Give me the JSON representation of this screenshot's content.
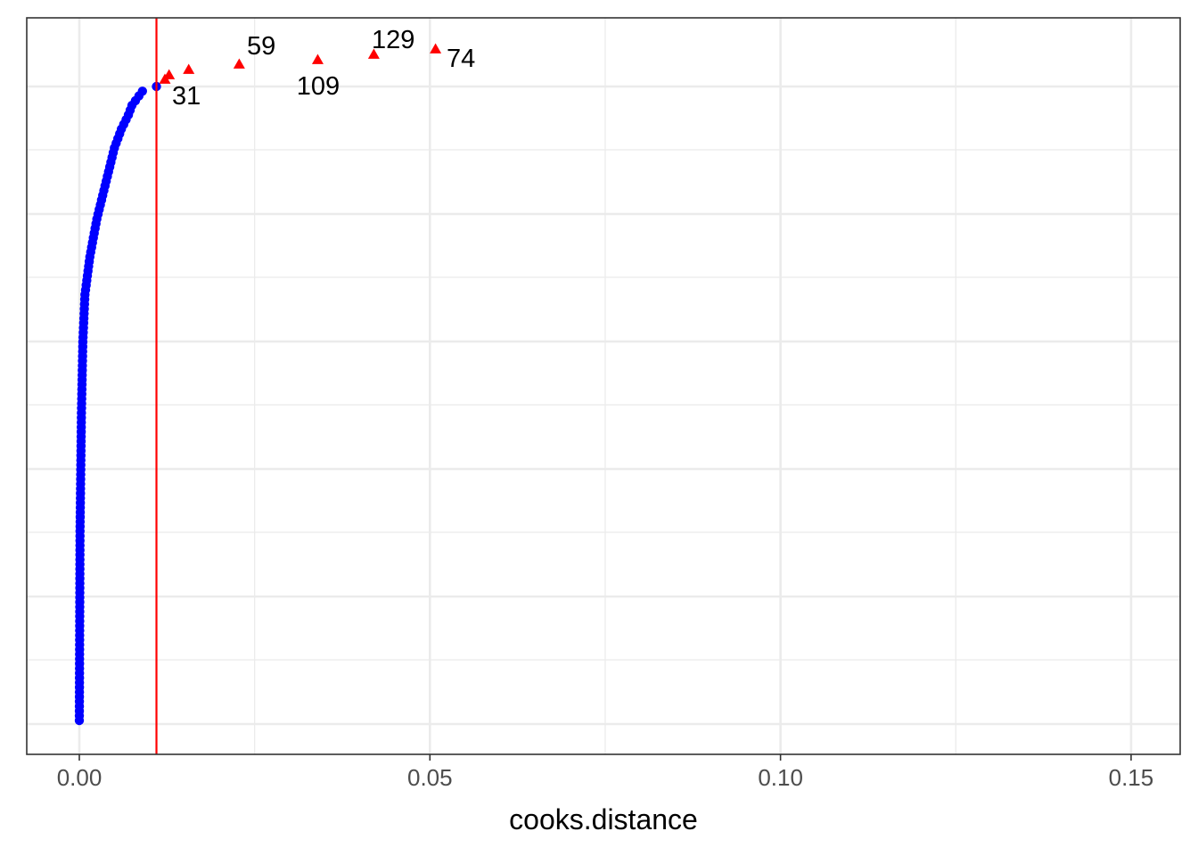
{
  "chart_data": {
    "type": "scatter",
    "xlabel": "cooks.distance",
    "ylabel": "",
    "xlim": [
      -0.0075,
      0.157
    ],
    "ylim": [
      0,
      141
    ],
    "x_ticks": [
      0.0,
      0.05,
      0.1,
      0.15
    ],
    "x_tick_labels": [
      "0.00",
      "0.05",
      "0.10",
      "0.15"
    ],
    "grid": true,
    "colors": {
      "normal_points": "#0000ff",
      "outlier_points": "#ff0000",
      "threshold_line": "#ff0000",
      "grid": "#ebebeb",
      "panel_border": "#333333"
    },
    "threshold": 0.011,
    "normal_anchors": [
      [
        0.0,
        0
      ],
      [
        0.0001,
        40
      ],
      [
        0.0003,
        65
      ],
      [
        0.0005,
        80
      ],
      [
        0.0008,
        90
      ],
      [
        0.0015,
        98
      ],
      [
        0.0025,
        106
      ],
      [
        0.0035,
        112
      ],
      [
        0.0045,
        118
      ],
      [
        0.005,
        121
      ],
      [
        0.006,
        125
      ],
      [
        0.007,
        128
      ],
      [
        0.0075,
        130
      ],
      [
        0.0085,
        132
      ],
      [
        0.009,
        133
      ],
      [
        0.011,
        134
      ]
    ],
    "normal_count": 135,
    "outliers": [
      {
        "x": 0.0122,
        "y": 135
      },
      {
        "x": 0.0128,
        "y": 136
      },
      {
        "x": 0.0156,
        "y": 137
      },
      {
        "x": 0.0228,
        "y": 138
      },
      {
        "x": 0.034,
        "y": 139
      },
      {
        "x": 0.042,
        "y": 140
      },
      {
        "x": 0.0508,
        "y": 141
      }
    ],
    "labels": [
      {
        "text": "31",
        "x": 0.011,
        "y": 134,
        "pos": "below-right"
      },
      {
        "text": "59",
        "x": 0.0228,
        "y": 138,
        "pos": "above-right"
      },
      {
        "text": "109",
        "x": 0.034,
        "y": 139,
        "pos": "below"
      },
      {
        "text": "129",
        "x": 0.042,
        "y": 140,
        "pos": "above-right"
      },
      {
        "text": "74",
        "x": 0.0508,
        "y": 141,
        "pos": "right"
      }
    ]
  }
}
